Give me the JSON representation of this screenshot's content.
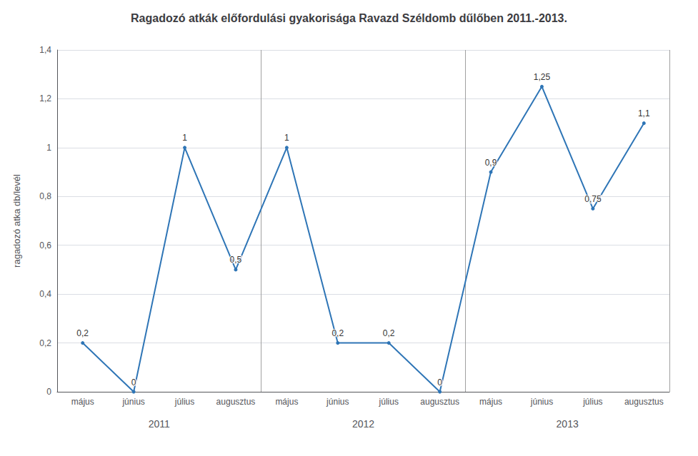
{
  "chart_data": {
    "type": "line",
    "title": "Ragadozó atkák előfordulási gyakorisága Ravazd Széldomb dűlőben 2011.-2013.",
    "ylabel": "ragadozó atka db/levél",
    "categories": [
      "május",
      "június",
      "július",
      "augusztus",
      "május",
      "június",
      "július",
      "augusztus",
      "május",
      "június",
      "július",
      "augusztus"
    ],
    "groups": [
      "2011",
      "2012",
      "2013"
    ],
    "values": [
      0.2,
      0.0,
      1.0,
      0.5,
      1.0,
      0.2,
      0.2,
      0.0,
      0.9,
      1.25,
      0.75,
      1.1
    ],
    "value_labels": [
      "0,2",
      "0",
      "1",
      "0,5",
      "1",
      "0,2",
      "0,2",
      "0",
      "0,9",
      "1,25",
      "0,75",
      "1,1"
    ],
    "data_labels": true,
    "color": "#2E75B6",
    "ylim": [
      0,
      1.4
    ],
    "yticks": [
      0,
      {
        "value": 0.2,
        "label": "0,2"
      },
      {
        "value": 0.4,
        "label": "0,4"
      },
      {
        "value": 0.6,
        "label": "0,6"
      },
      {
        "value": 0.8,
        "label": "0,8"
      },
      1,
      {
        "value": 1.2,
        "label": "1,2"
      },
      {
        "value": 1.4,
        "label": "1,4"
      }
    ],
    "grid": true
  }
}
